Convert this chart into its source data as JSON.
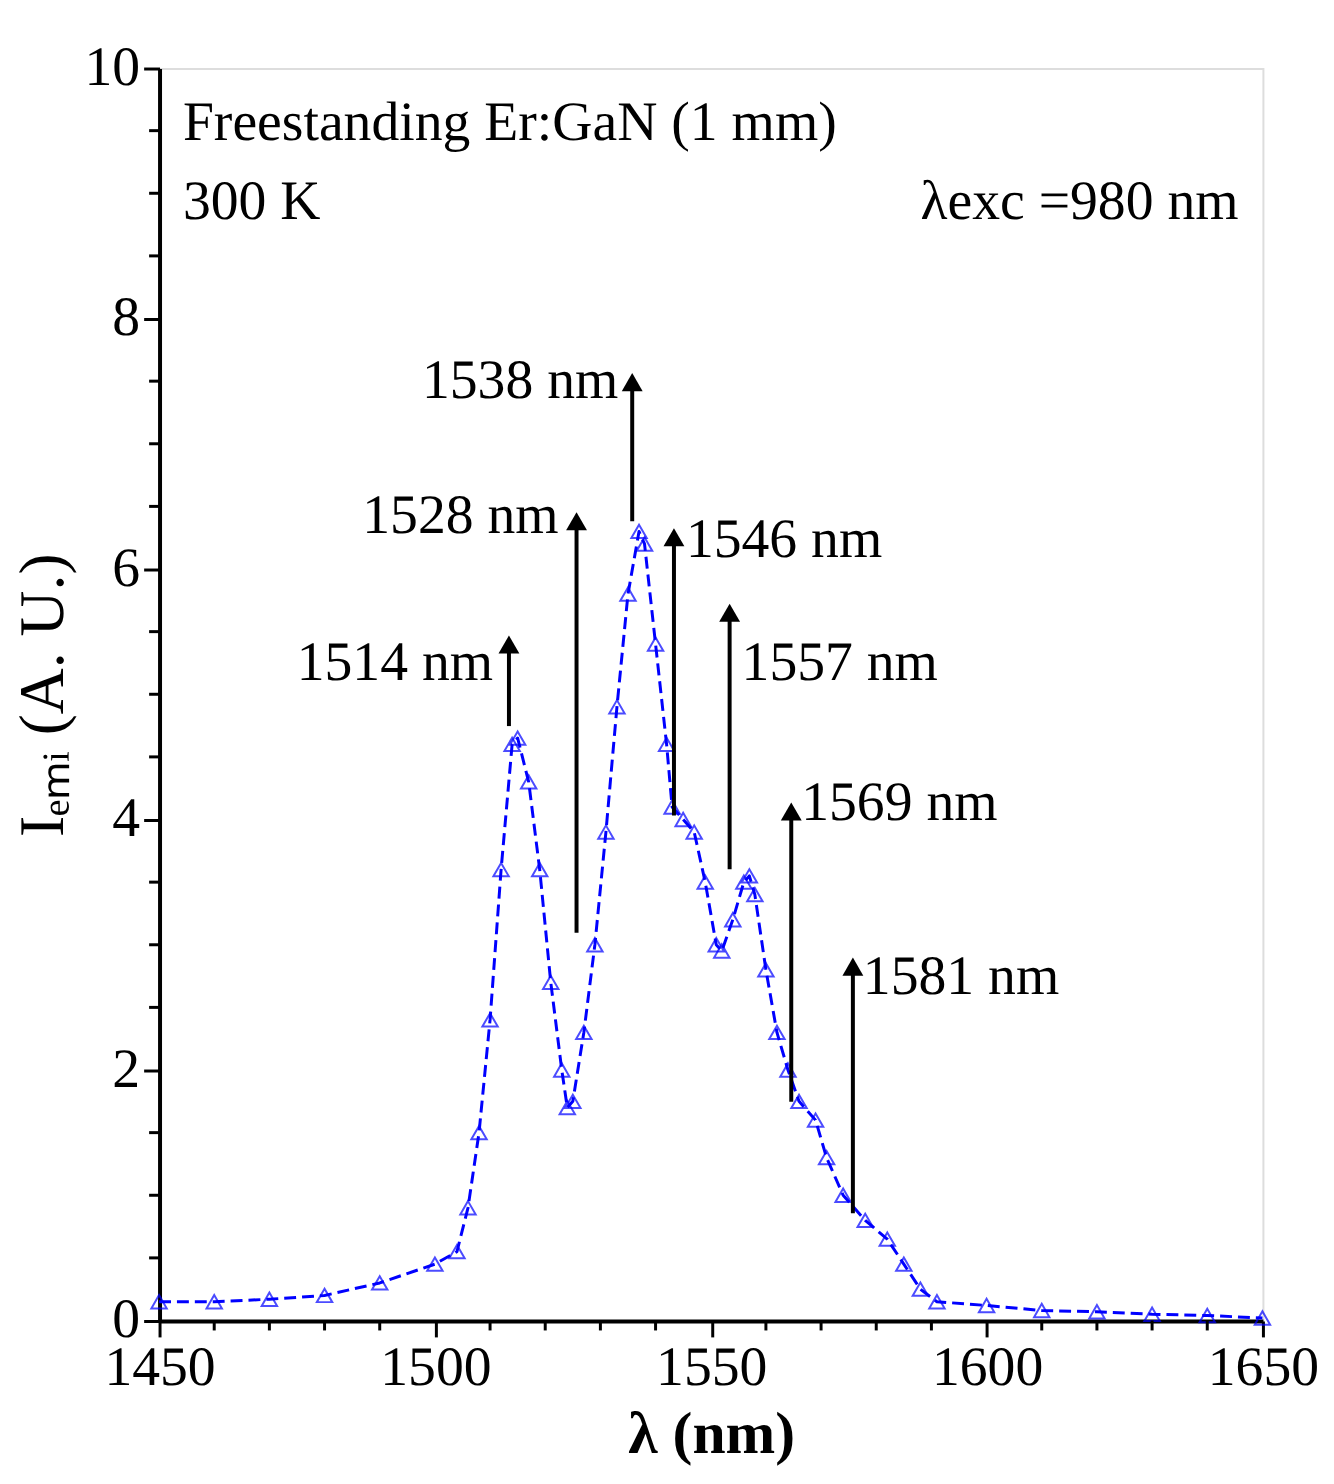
{
  "chart_data": {
    "type": "line",
    "xlabel": "λ (nm)",
    "ylabel": "Iₑₘᵢ (A. U.)",
    "x": [
      1450,
      1460,
      1470,
      1480,
      1490,
      1500,
      1504,
      1506,
      1508,
      1510,
      1512,
      1514,
      1515,
      1517,
      1519,
      1521,
      1523,
      1524,
      1525,
      1527,
      1529,
      1531,
      1533,
      1535,
      1537,
      1538,
      1540,
      1542,
      1543,
      1545,
      1547,
      1549,
      1551,
      1552,
      1554,
      1556,
      1557,
      1558,
      1560,
      1562,
      1564,
      1566,
      1569,
      1571,
      1574,
      1578,
      1582,
      1585,
      1588,
      1591,
      1600,
      1610,
      1620,
      1630,
      1640,
      1650
    ],
    "series": [
      {
        "color": "#0000ff",
        "marker": "triangle",
        "line_style": "dashed",
        "values": [
          0.15,
          0.15,
          0.17,
          0.2,
          0.3,
          0.45,
          0.55,
          0.9,
          1.5,
          2.4,
          3.6,
          4.6,
          4.65,
          4.3,
          3.6,
          2.7,
          2.0,
          1.7,
          1.75,
          2.3,
          3.0,
          3.9,
          4.9,
          5.8,
          6.3,
          6.2,
          5.4,
          4.6,
          4.1,
          4.0,
          3.9,
          3.5,
          3.0,
          2.95,
          3.2,
          3.5,
          3.55,
          3.4,
          2.8,
          2.3,
          2.0,
          1.75,
          1.6,
          1.3,
          1.0,
          0.8,
          0.65,
          0.45,
          0.25,
          0.15,
          0.12,
          0.08,
          0.07,
          0.05,
          0.04,
          0.02
        ]
      }
    ],
    "xlim": [
      1450,
      1650
    ],
    "xticks": [
      1450,
      {
        "value": 1460,
        "label": null
      },
      {
        "value": 1470,
        "label": null
      },
      {
        "value": 1480,
        "label": null
      },
      {
        "value": 1490,
        "label": null
      },
      1500,
      {
        "value": 1510,
        "label": null
      },
      {
        "value": 1520,
        "label": null
      },
      {
        "value": 1530,
        "label": null
      },
      {
        "value": 1540,
        "label": null
      },
      1550,
      {
        "value": 1560,
        "label": null
      },
      {
        "value": 1570,
        "label": null
      },
      {
        "value": 1580,
        "label": null
      },
      {
        "value": 1590,
        "label": null
      },
      1600,
      {
        "value": 1610,
        "label": null
      },
      {
        "value": 1620,
        "label": null
      },
      {
        "value": 1630,
        "label": null
      },
      {
        "value": 1640,
        "label": null
      },
      1650
    ],
    "ylim": [
      0,
      10
    ],
    "yticks": [
      0,
      {
        "value": 0.5,
        "label": null
      },
      {
        "value": 1,
        "label": null
      },
      {
        "value": 1.5,
        "label": null
      },
      2,
      {
        "value": 2.5,
        "label": null
      },
      {
        "value": 3,
        "label": null
      },
      {
        "value": 3.5,
        "label": null
      },
      4,
      {
        "value": 4.5,
        "label": null
      },
      {
        "value": 5,
        "label": null
      },
      {
        "value": 5.5,
        "label": null
      },
      6,
      {
        "value": 6.5,
        "label": null
      },
      {
        "value": 7,
        "label": null
      },
      {
        "value": 7.5,
        "label": null
      },
      8,
      {
        "value": 8.5,
        "label": null
      },
      {
        "value": 9,
        "label": null
      },
      {
        "value": 9.5,
        "label": null
      },
      10
    ],
    "grid": false,
    "annotations": [
      "Freestanding Er:GaN (1 mm)",
      "300 K",
      "λexc =980 nm",
      "1514 nm",
      "1528 nm",
      "1538 nm",
      "1546 nm",
      "1557 nm",
      "1569 nm",
      "1581 nm"
    ]
  }
}
